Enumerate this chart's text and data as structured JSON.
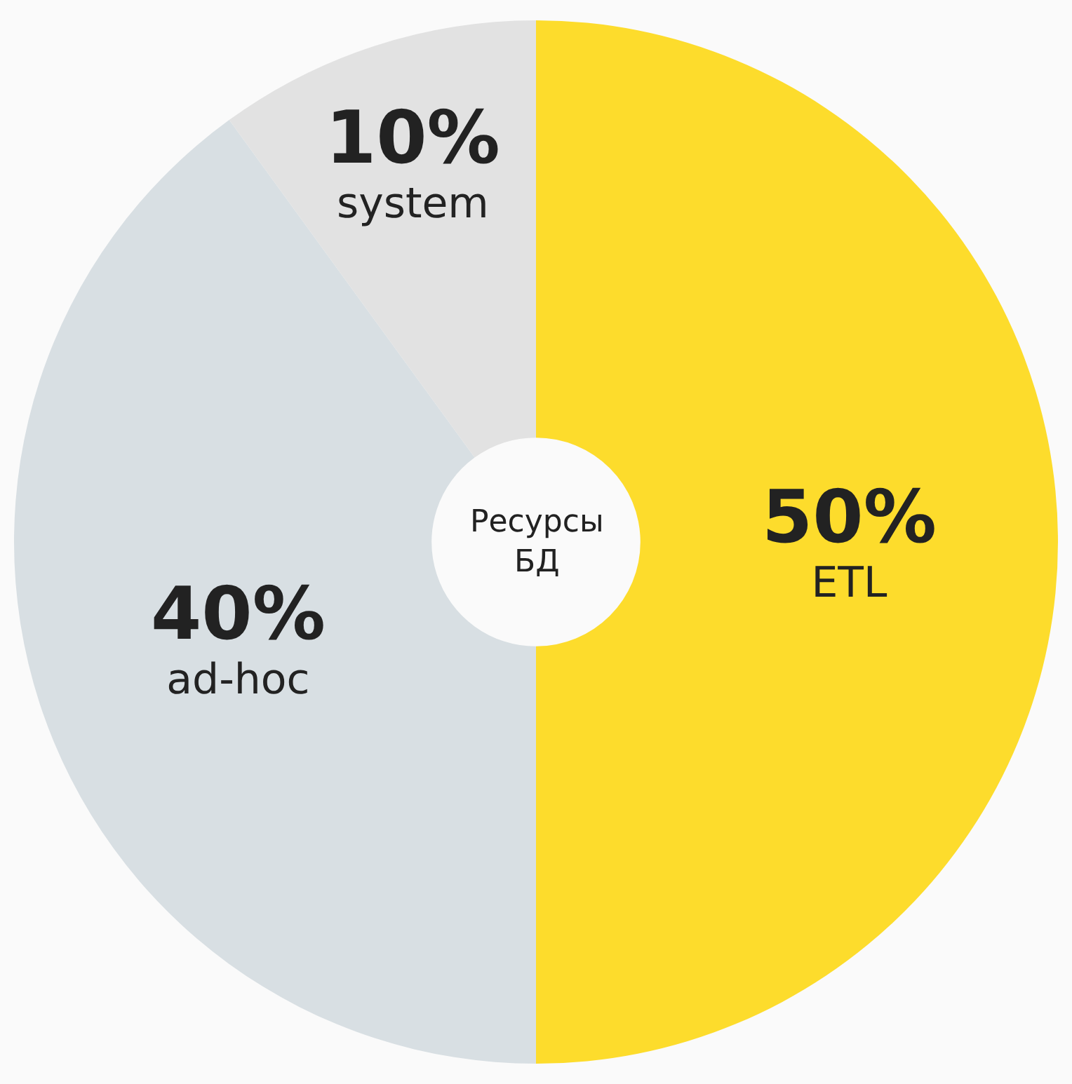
{
  "chart_data": {
    "type": "donut",
    "categories": [
      "ETL",
      "ad-hoc",
      "system"
    ],
    "values": [
      50,
      40,
      10
    ],
    "value_labels": [
      "50%",
      "40%",
      "10%"
    ],
    "colors": [
      "#fddc2c",
      "#d8dfe3",
      "#e2e2e2"
    ],
    "annotations": [
      "Ресурсы БД"
    ],
    "legend": false
  }
}
